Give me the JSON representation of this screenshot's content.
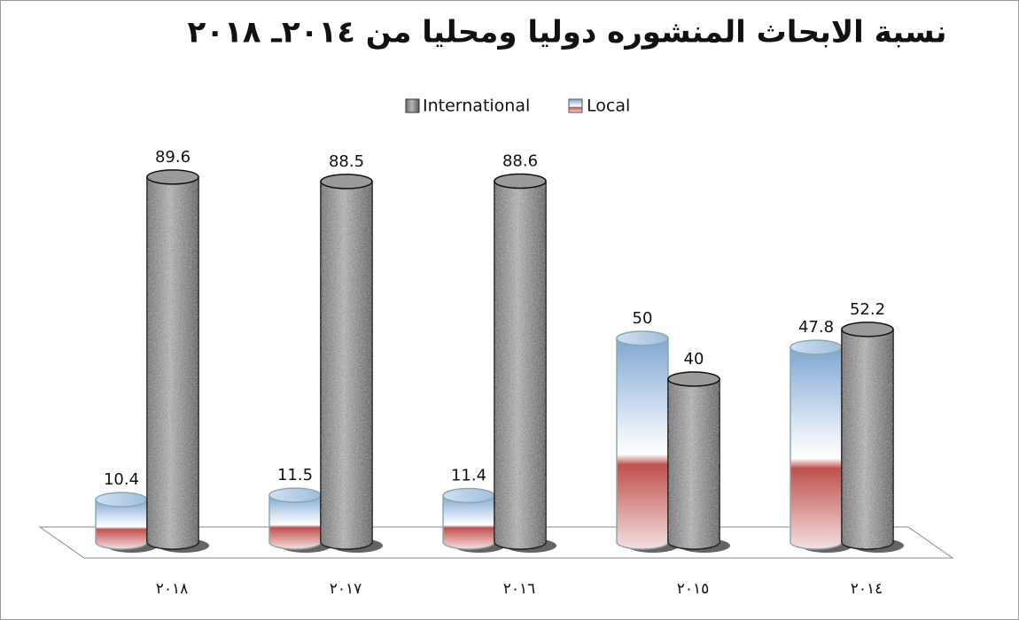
{
  "chart_data": {
    "type": "bar",
    "title": "نسبة الابحاث المنشوره دوليا ومحليا من ٢٠١٤ـ ٢٠١٨",
    "categories": [
      "٢٠١٨",
      "٢٠١٧",
      "٢٠١٦",
      "٢٠١٥",
      "٢٠١٤"
    ],
    "series": [
      {
        "name": "International",
        "values": [
          89.6,
          88.5,
          88.6,
          40,
          52.2
        ]
      },
      {
        "name": "Local",
        "values": [
          10.4,
          11.5,
          11.4,
          50,
          47.8
        ]
      }
    ],
    "ylim": [
      0,
      100
    ]
  }
}
